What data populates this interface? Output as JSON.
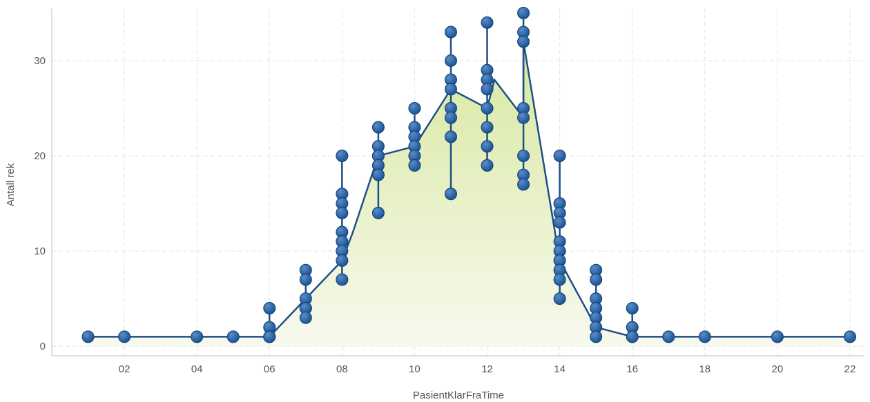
{
  "chart_data": {
    "type": "line",
    "xlabel": "PasientKlarFraTime",
    "ylabel": "Antall rek",
    "xlim": [
      0,
      22.4
    ],
    "ylim": [
      -1,
      35.5
    ],
    "x_ticks": [
      {
        "value": 2,
        "label": "02"
      },
      {
        "value": 4,
        "label": "04"
      },
      {
        "value": 6,
        "label": "06"
      },
      {
        "value": 8,
        "label": "08"
      },
      {
        "value": 10,
        "label": "10"
      },
      {
        "value": 12,
        "label": "12"
      },
      {
        "value": 14,
        "label": "14"
      },
      {
        "value": 16,
        "label": "16"
      },
      {
        "value": 18,
        "label": "18"
      },
      {
        "value": 20,
        "label": "20"
      },
      {
        "value": 22,
        "label": "22"
      }
    ],
    "y_ticks": [
      0,
      10,
      20,
      30
    ],
    "grid": true,
    "area_fill": true,
    "colors": {
      "line": "#1e4f86",
      "marker": "#1a5596",
      "marker_highlight": "#5a8cc8",
      "area_top": "#d8e8a0",
      "area_bottom": "#f7f9ee"
    },
    "points": [
      {
        "x": 1,
        "values": [
          1
        ]
      },
      {
        "x": 2,
        "values": [
          1
        ]
      },
      {
        "x": 4,
        "values": [
          1
        ]
      },
      {
        "x": 5,
        "values": [
          1
        ]
      },
      {
        "x": 6,
        "values": [
          4,
          2,
          1,
          1,
          1
        ]
      },
      {
        "x": 7,
        "values": [
          8,
          7,
          5,
          4,
          4,
          3
        ]
      },
      {
        "x": 8,
        "values": [
          20,
          16,
          15,
          14,
          12,
          11,
          10,
          9,
          7
        ]
      },
      {
        "x": 9,
        "values": [
          23,
          21,
          20,
          20,
          19,
          18,
          14
        ]
      },
      {
        "x": 10,
        "values": [
          25,
          23,
          22,
          21,
          20,
          19
        ]
      },
      {
        "x": 11,
        "values": [
          33,
          30,
          28,
          27,
          25,
          24,
          22,
          16
        ]
      },
      {
        "x": 12,
        "values": [
          34,
          29,
          28,
          27,
          25,
          23,
          21,
          19
        ]
      },
      {
        "x": 13,
        "values": [
          35,
          33,
          32,
          25,
          24,
          20,
          18,
          17
        ]
      },
      {
        "x": 14,
        "values": [
          20,
          15,
          14,
          13,
          11,
          10,
          9,
          8,
          7,
          5
        ]
      },
      {
        "x": 15,
        "values": [
          8,
          7,
          5,
          4,
          3,
          2,
          1
        ]
      },
      {
        "x": 16,
        "values": [
          4,
          2,
          1,
          1
        ]
      },
      {
        "x": 17,
        "values": [
          1
        ]
      },
      {
        "x": 18,
        "values": [
          1
        ]
      },
      {
        "x": 20,
        "values": [
          1
        ]
      },
      {
        "x": 22,
        "values": [
          1
        ]
      }
    ],
    "line": [
      {
        "x": 1,
        "y": 1
      },
      {
        "x": 2,
        "y": 1
      },
      {
        "x": 4,
        "y": 1
      },
      {
        "x": 5,
        "y": 1
      },
      {
        "x": 6,
        "y": 1
      },
      {
        "x": 7,
        "y": 5
      },
      {
        "x": 8,
        "y": 9
      },
      {
        "x": 8.3,
        "y": 12
      },
      {
        "x": 9,
        "y": 20
      },
      {
        "x": 10,
        "y": 21
      },
      {
        "x": 11,
        "y": 27
      },
      {
        "x": 12,
        "y": 25
      },
      {
        "x": 12.2,
        "y": 28
      },
      {
        "x": 13,
        "y": 24
      },
      {
        "x": 13,
        "y": 32
      },
      {
        "x": 14,
        "y": 9
      },
      {
        "x": 15,
        "y": 2
      },
      {
        "x": 16,
        "y": 1
      },
      {
        "x": 17,
        "y": 1
      },
      {
        "x": 18,
        "y": 1
      },
      {
        "x": 20,
        "y": 1
      },
      {
        "x": 22,
        "y": 1
      }
    ]
  }
}
